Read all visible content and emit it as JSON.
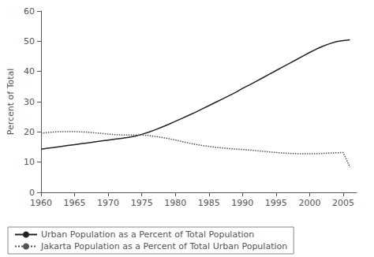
{
  "chart_data": {
    "type": "line",
    "x": [
      1960,
      1961,
      1962,
      1963,
      1964,
      1965,
      1966,
      1967,
      1968,
      1969,
      1970,
      1971,
      1972,
      1973,
      1974,
      1975,
      1976,
      1977,
      1978,
      1979,
      1980,
      1981,
      1982,
      1983,
      1984,
      1985,
      1986,
      1987,
      1988,
      1989,
      1990,
      1991,
      1992,
      1993,
      1994,
      1995,
      1996,
      1997,
      1998,
      1999,
      2000,
      2001,
      2002,
      2003,
      2004,
      2005,
      2006
    ],
    "series": [
      {
        "name": "Urban Population as a Percent of Total Population",
        "color": "#222222",
        "line_style": "solid",
        "values": [
          14.3,
          14.6,
          14.9,
          15.2,
          15.5,
          15.8,
          16.1,
          16.4,
          16.7,
          17.0,
          17.3,
          17.6,
          17.9,
          18.2,
          18.6,
          19.2,
          19.9,
          20.7,
          21.6,
          22.5,
          23.5,
          24.5,
          25.5,
          26.5,
          27.6,
          28.7,
          29.8,
          30.9,
          32.0,
          33.1,
          34.4,
          35.5,
          36.7,
          37.9,
          39.1,
          40.3,
          41.5,
          42.7,
          43.9,
          45.1,
          46.3,
          47.4,
          48.4,
          49.2,
          49.9,
          50.2,
          50.5
        ]
      },
      {
        "name": "Jakarta Population as a Percent of Total Urban Population",
        "color": "#555555",
        "line_style": "dotted",
        "values": [
          19.6,
          19.8,
          20.0,
          20.1,
          20.1,
          20.1,
          20.0,
          19.9,
          19.7,
          19.5,
          19.3,
          19.1,
          19.0,
          19.0,
          19.0,
          19.0,
          18.8,
          18.5,
          18.2,
          17.8,
          17.3,
          16.8,
          16.3,
          15.9,
          15.5,
          15.2,
          14.9,
          14.7,
          14.5,
          14.3,
          14.2,
          14.0,
          13.8,
          13.6,
          13.4,
          13.2,
          13.0,
          12.9,
          12.8,
          12.8,
          12.8,
          12.8,
          12.9,
          13.0,
          13.1,
          13.2,
          8.3
        ]
      }
    ],
    "xlim": [
      1960,
      2007
    ],
    "xticks": [
      1960,
      1965,
      1970,
      1975,
      1980,
      1985,
      1990,
      1995,
      2000,
      2005
    ],
    "ylim": [
      0,
      60
    ],
    "yticks": [
      0,
      10,
      20,
      30,
      40,
      50,
      60
    ],
    "ylabel": "Percent of Total",
    "grid": false,
    "legend": "lower left"
  }
}
